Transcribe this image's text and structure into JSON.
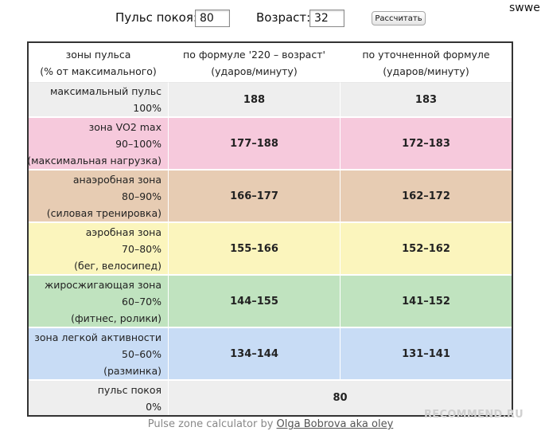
{
  "form": {
    "pulse_label": "Пульс покоя:",
    "pulse_value": "80",
    "age_label": "Возраст:",
    "age_value": "32",
    "calc_button": "Рассчитать"
  },
  "user": "swwe",
  "table": {
    "header": {
      "col1": [
        "зоны пульса",
        "(% от максимального)"
      ],
      "col2": [
        "по формуле '220 – возраст'",
        "(ударов/минуту)"
      ],
      "col3": [
        "по уточненной формуле",
        "(ударов/минуту)"
      ]
    },
    "rows": [
      {
        "name": "максимальный пульс",
        "range": "100%",
        "note": "",
        "f1": "188",
        "f2": "183",
        "color": "#eeeeee"
      },
      {
        "name": "зона VO2 max",
        "range": "90–100%",
        "note": "(максимальная нагрузка)",
        "f1": "177–188",
        "f2": "172–183",
        "color": "#f6c9dc"
      },
      {
        "name": "анаэробная зона",
        "range": "80–90%",
        "note": "(силовая тренировка)",
        "f1": "166–177",
        "f2": "162–172",
        "color": "#e7ccb3"
      },
      {
        "name": "аэробная зона",
        "range": "70–80%",
        "note": "(бег, велосипед)",
        "f1": "155–166",
        "f2": "152–162",
        "color": "#fbf5bd"
      },
      {
        "name": "жиросжигающая зона",
        "range": "60–70%",
        "note": "(фитнес, ролики)",
        "f1": "144–155",
        "f2": "141–152",
        "color": "#c0e3bf"
      },
      {
        "name": "зона легкой активности",
        "range": "50–60%",
        "note": "(разминка)",
        "f1": "134–144",
        "f2": "131–141",
        "color": "#c8dcf5"
      }
    ],
    "resting": {
      "name": "пульс покоя",
      "range": "0%",
      "value": "80",
      "color": "#eeeeee"
    }
  },
  "footer": {
    "prefix": "Pulse zone calculator by ",
    "author": "Olga Bobrova aka oley"
  },
  "watermark": "RECOMMEND.RU"
}
